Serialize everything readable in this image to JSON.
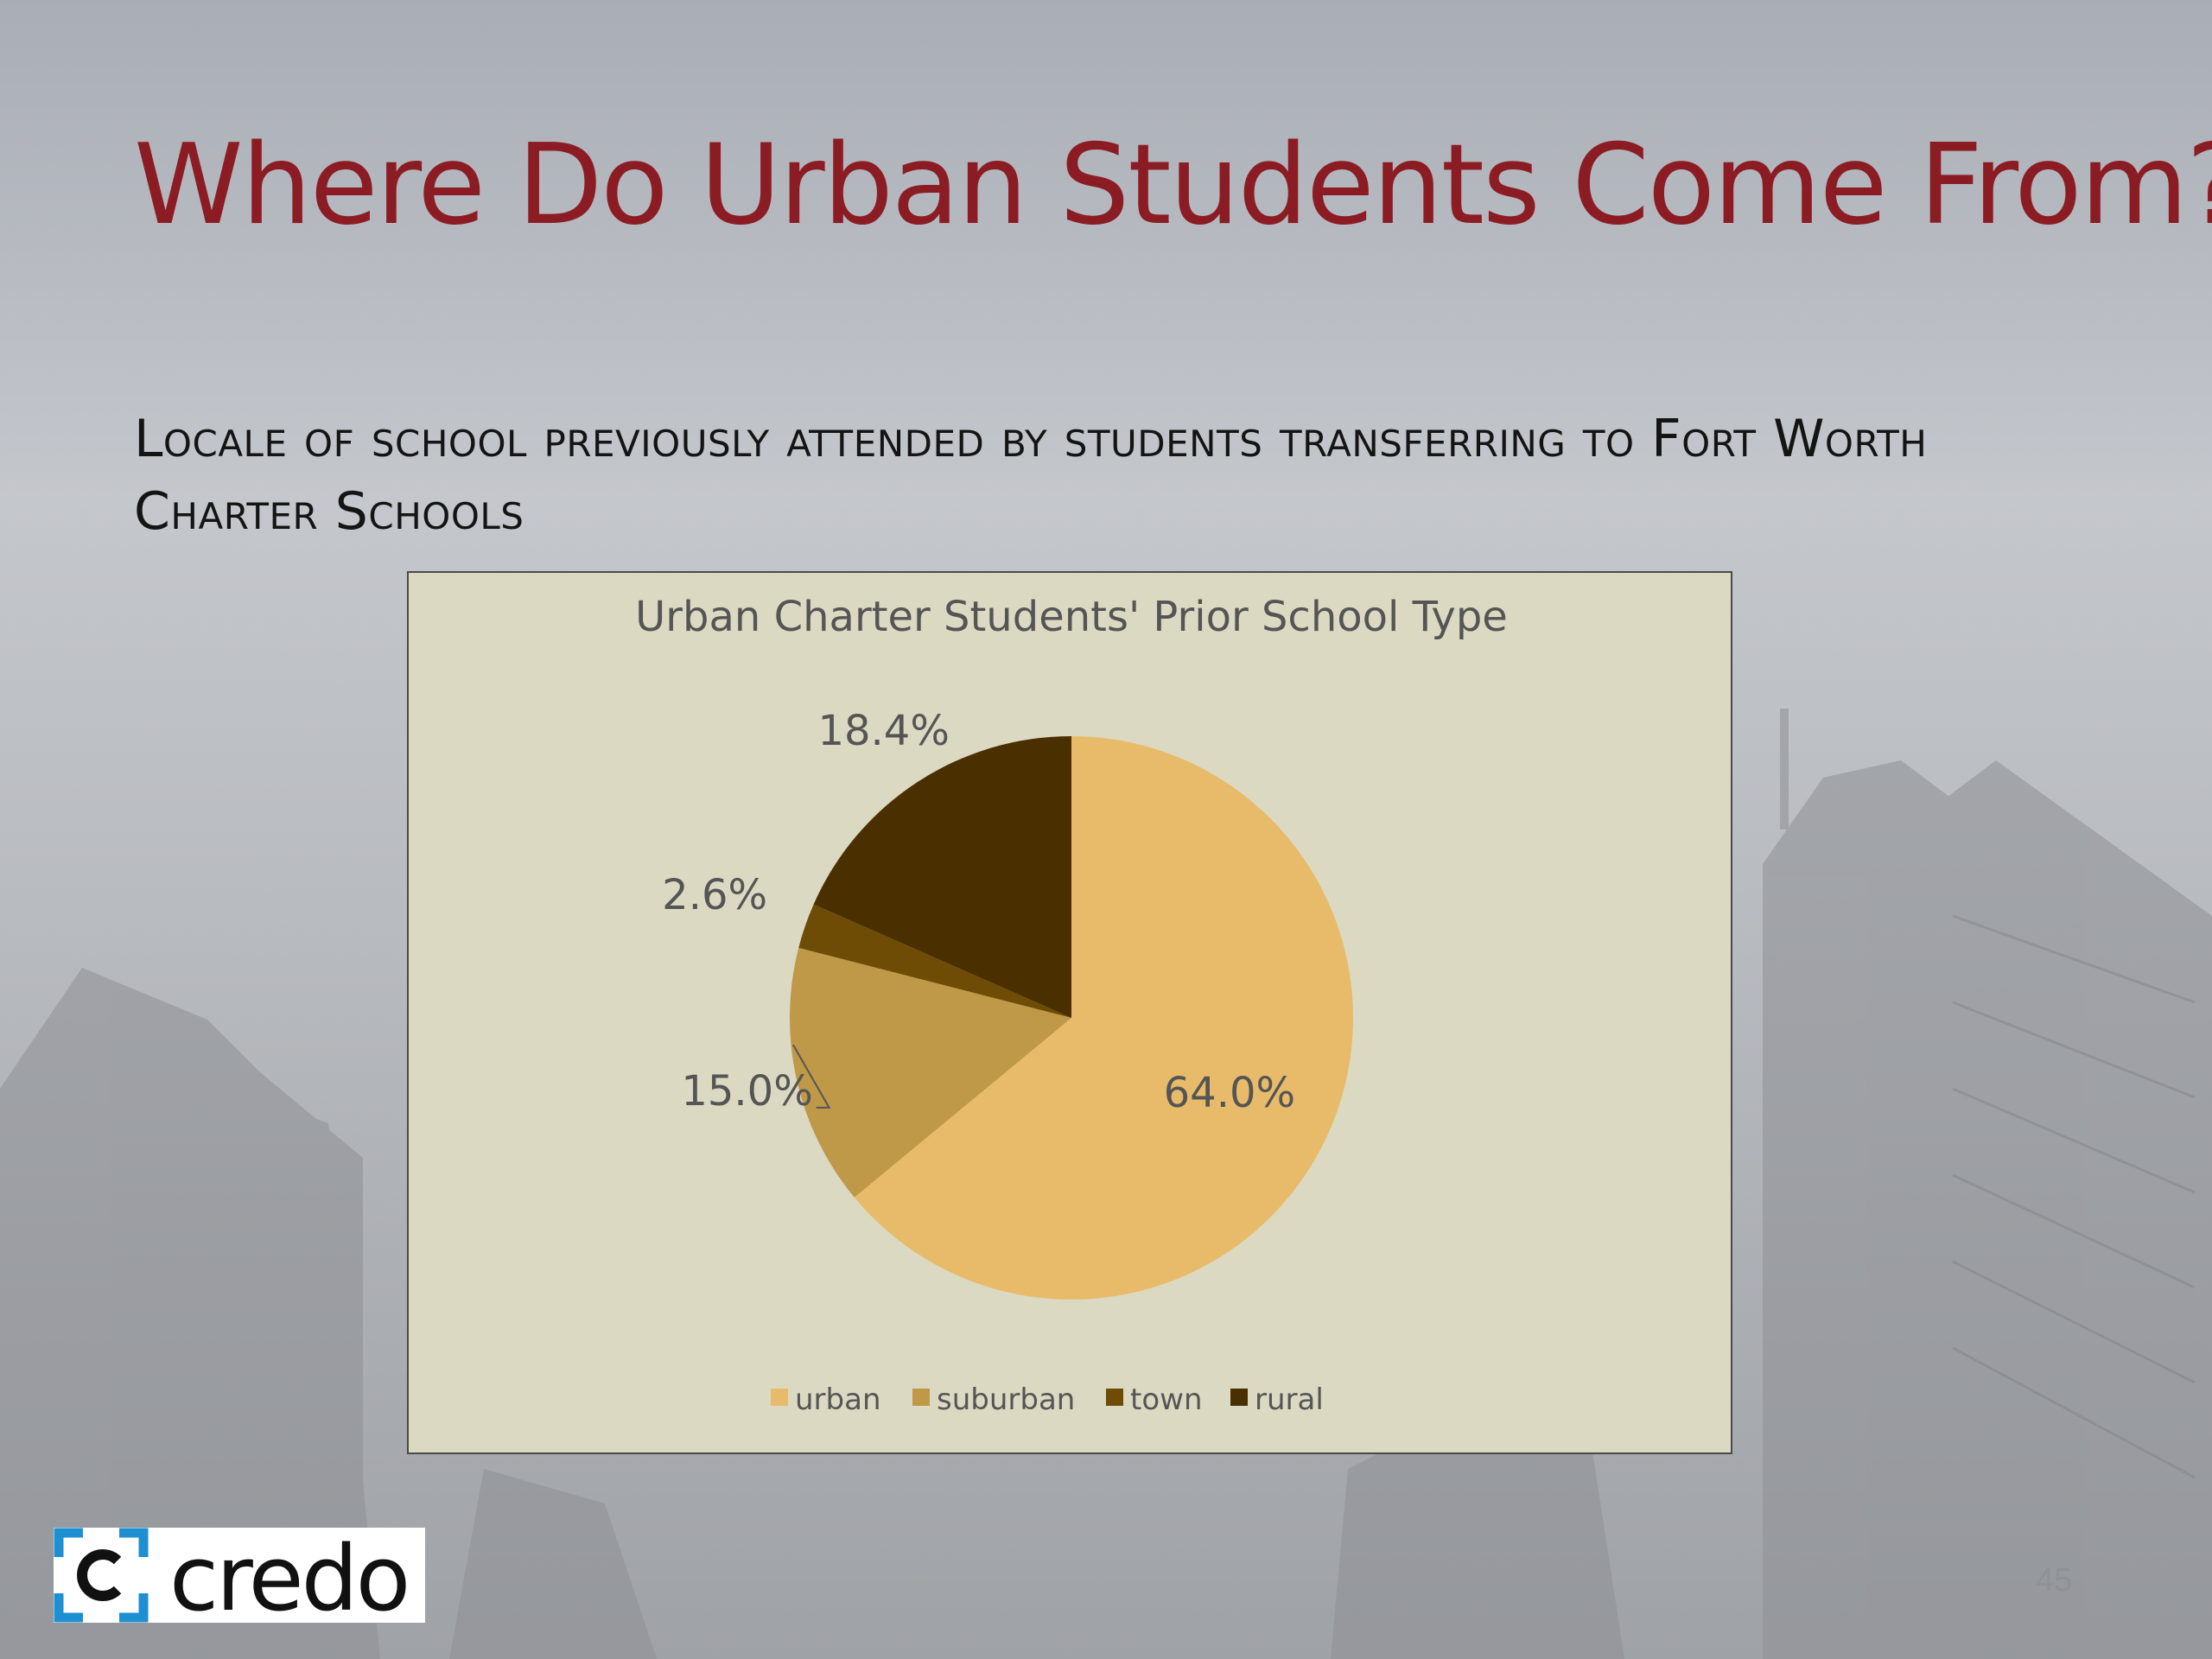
{
  "slide": {
    "title": "Where Do Urban Students Come From?",
    "subtitle": "Locale of school previously attended by students transferring to Fort Worth Charter Schools",
    "page_number": "45",
    "logo_text": "credo"
  },
  "colors": {
    "title": "#8c1c24",
    "chart_background": "#dcd9c2",
    "logo_accent": "#1e8fd0"
  },
  "chart_data": {
    "type": "pie",
    "title": "Urban Charter Students' Prior School Type",
    "categories": [
      "urban",
      "suburban",
      "town",
      "rural"
    ],
    "values": [
      64.0,
      15.0,
      2.6,
      18.4
    ],
    "labels": [
      "64.0%",
      "15.0%",
      "2.6%",
      "18.4%"
    ],
    "colors": [
      "#e8bb6a",
      "#bf9848",
      "#6e4c06",
      "#4a3000"
    ],
    "legend_position": "bottom",
    "start_angle": "12 o'clock, clockwise"
  }
}
